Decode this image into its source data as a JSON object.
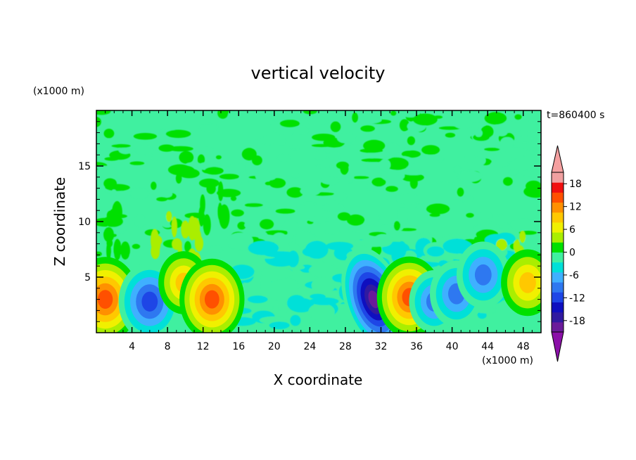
{
  "chart_data": {
    "type": "heatmap",
    "title": "vertical velocity",
    "xlabel": "X coordinate",
    "ylabel": "Z coordinate",
    "x_unit": "(x1000 m)",
    "y_unit": "(x1000 m)",
    "time_label": "t=860400 s",
    "xlim": [
      0,
      50
    ],
    "ylim": [
      0,
      20
    ],
    "x_ticks": [
      4,
      8,
      12,
      16,
      20,
      24,
      28,
      32,
      36,
      40,
      44,
      48
    ],
    "y_ticks": [
      5,
      10,
      15
    ],
    "colorbar": {
      "levels": [
        -21,
        -18,
        -15,
        -12,
        -9,
        -6,
        -3,
        0,
        3,
        6,
        9,
        12,
        15,
        18,
        21
      ],
      "tick_labels": [
        18,
        12,
        6,
        0,
        -6,
        -12,
        -18
      ],
      "colors": [
        "#6a1b9a",
        "#301aa0",
        "#0f0fbf",
        "#1e46e6",
        "#2e78f0",
        "#3fb0ff",
        "#00e0d8",
        "#40f0a0",
        "#00e000",
        "#aaee00",
        "#f0f000",
        "#ffc800",
        "#ff9000",
        "#ff5000",
        "#f01010",
        "#f0a0a0"
      ],
      "extend_low_color": "#8b10a8",
      "extend_high_color": "#f5a0a0"
    },
    "features": [
      {
        "x": 1.0,
        "z": 3.0,
        "value": 14
      },
      {
        "x": 6.0,
        "z": 2.8,
        "value": -12
      },
      {
        "x": 9.8,
        "z": 4.5,
        "value": 8
      },
      {
        "x": 13.0,
        "z": 3.0,
        "value": 13
      },
      {
        "x": 31.2,
        "z": 3.0,
        "value": -20
      },
      {
        "x": 35.2,
        "z": 3.2,
        "value": 13
      },
      {
        "x": 38.0,
        "z": 2.8,
        "value": -8
      },
      {
        "x": 40.5,
        "z": 3.5,
        "value": -9
      },
      {
        "x": 43.5,
        "z": 5.2,
        "value": -9
      },
      {
        "x": 48.5,
        "z": 4.5,
        "value": 9
      }
    ]
  }
}
